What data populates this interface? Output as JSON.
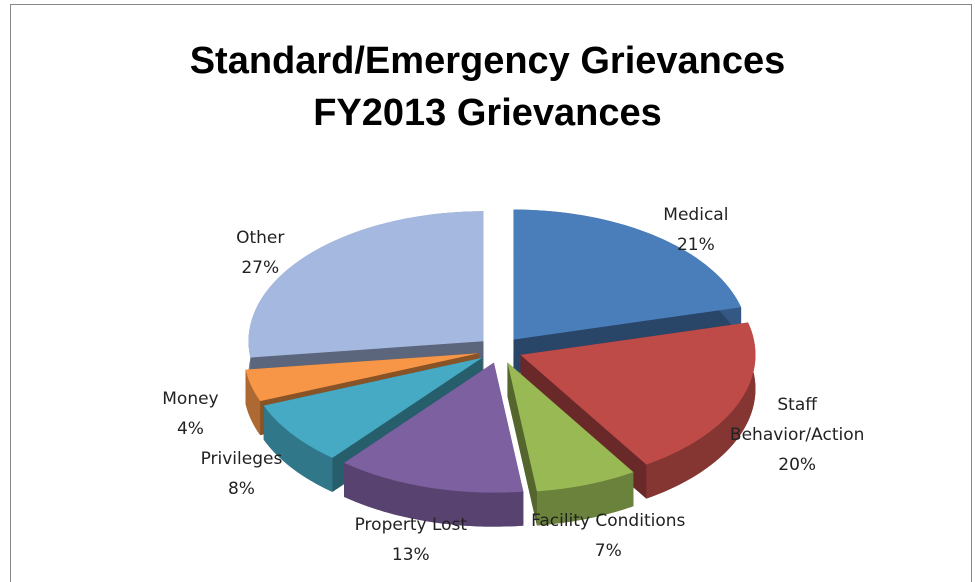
{
  "chart_data": {
    "type": "pie",
    "title": "Standard/Emergency Grievances",
    "subtitle": "FY2013 Grievances",
    "categories": [
      "Medical",
      "Staff Behavior/Action",
      "Facility Conditions",
      "Property Lost",
      "Privileges",
      "Money",
      "Other"
    ],
    "values": [
      21,
      20,
      7,
      13,
      8,
      4,
      27
    ],
    "value_labels": [
      "21%",
      "20%",
      "7%",
      "13%",
      "8%",
      "4%",
      "27%"
    ],
    "colors": [
      "#4a7ebb",
      "#be4b48",
      "#98b954",
      "#7d60a0",
      "#46aac5",
      "#f79646",
      "#a5b8e0"
    ]
  }
}
